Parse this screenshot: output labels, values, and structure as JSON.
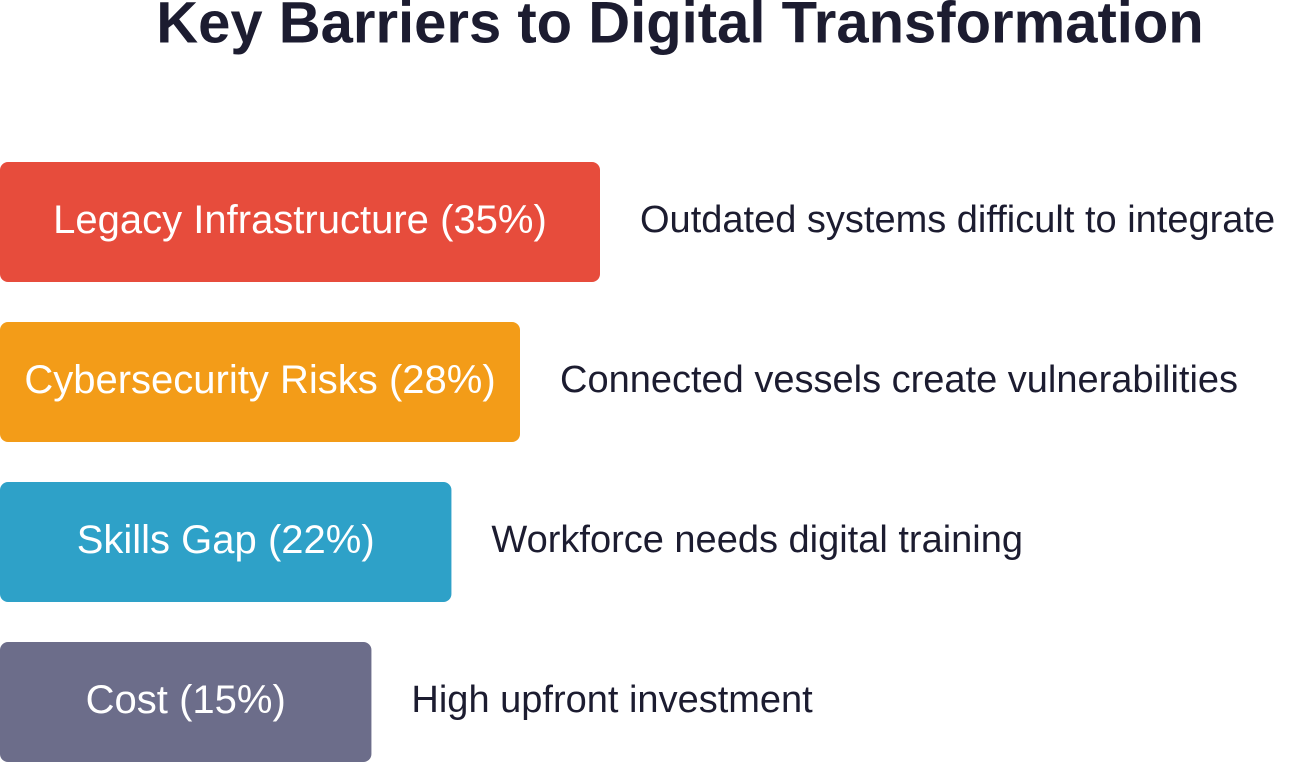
{
  "chart_data": {
    "type": "bar",
    "title": "Key Barriers to Digital Transformation",
    "categories": [
      "Legacy Infrastructure",
      "Cybersecurity Risks",
      "Skills Gap",
      "Cost"
    ],
    "values": [
      35,
      28,
      22,
      15
    ],
    "value_labels": [
      "(35%)",
      "(28%)",
      "(22%)",
      "(15%)"
    ],
    "colors": [
      "#e74c3c",
      "#f39c18",
      "#2ea1c8",
      "#6c6d8a"
    ],
    "annotations": [
      "Outdated systems difficult to integrate",
      "Connected vessels create vulnerabilities",
      "Workforce needs digital training",
      "High upfront investment"
    ]
  }
}
